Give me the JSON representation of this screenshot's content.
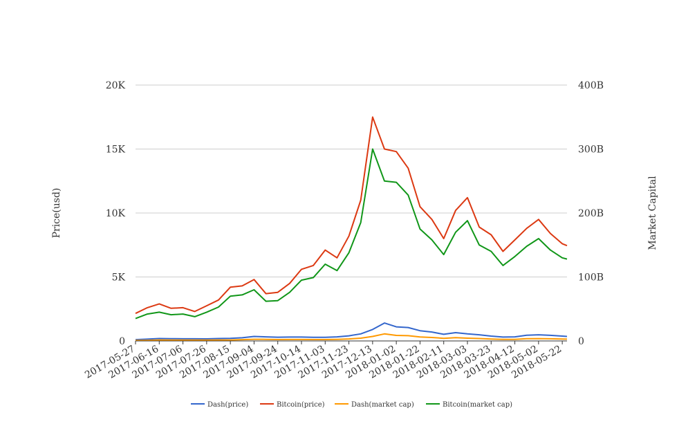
{
  "chart_data": {
    "type": "line",
    "title": "",
    "xlabel": "",
    "ylabel_left": "Price(usd)",
    "ylabel_right": "Market Capital",
    "x_ticks": [
      "2017-05-27",
      "2017-06-16",
      "2017-07-06",
      "2017-07-26",
      "2017-08-15",
      "2017-09-04",
      "2017-09-24",
      "2017-10-14",
      "2017-11-03",
      "2017-11-23",
      "2017-12-13",
      "2018-01-02",
      "2018-01-22",
      "2018-02-11",
      "2018-03-03",
      "2018-03-23",
      "2018-04-12",
      "2018-05-02",
      "2018-05-22"
    ],
    "y_left": {
      "ticks": [
        0,
        5000,
        10000,
        15000,
        20000
      ],
      "tick_labels": [
        "0",
        "5K",
        "10K",
        "15K",
        "20K"
      ],
      "range": [
        0,
        20000
      ]
    },
    "y_right": {
      "ticks": [
        0,
        100000000000,
        200000000000,
        300000000000,
        400000000000
      ],
      "tick_labels": [
        "0",
        "100B",
        "200B",
        "300B",
        "400B"
      ],
      "range": [
        0,
        400000000000
      ]
    },
    "grid": true,
    "legend_position": "bottom",
    "x": [
      "2017-05-27",
      "2017-06-06",
      "2017-06-16",
      "2017-06-26",
      "2017-07-06",
      "2017-07-16",
      "2017-07-26",
      "2017-08-05",
      "2017-08-15",
      "2017-08-25",
      "2017-09-04",
      "2017-09-14",
      "2017-09-24",
      "2017-10-04",
      "2017-10-14",
      "2017-10-24",
      "2017-11-03",
      "2017-11-13",
      "2017-11-23",
      "2017-12-03",
      "2017-12-13",
      "2017-12-23",
      "2018-01-02",
      "2018-01-12",
      "2018-01-22",
      "2018-02-01",
      "2018-02-11",
      "2018-02-21",
      "2018-03-03",
      "2018-03-13",
      "2018-03-23",
      "2018-04-02",
      "2018-04-12",
      "2018-04-22",
      "2018-05-02",
      "2018-05-12",
      "2018-05-22",
      "2018-05-26"
    ],
    "series": [
      {
        "name": "Dash(price)",
        "axis": "left",
        "color": "#3366cc",
        "values": [
          100,
          140,
          190,
          180,
          170,
          170,
          160,
          190,
          200,
          250,
          350,
          320,
          290,
          300,
          300,
          280,
          280,
          320,
          400,
          550,
          900,
          1400,
          1100,
          1050,
          800,
          700,
          520,
          650,
          550,
          480,
          380,
          300,
          320,
          450,
          480,
          440,
          380,
          350
        ]
      },
      {
        "name": "Bitcoin(price)",
        "axis": "left",
        "color": "#dc3912",
        "values": [
          2150,
          2600,
          2900,
          2550,
          2600,
          2300,
          2750,
          3200,
          4200,
          4300,
          4800,
          3700,
          3800,
          4500,
          5600,
          5900,
          7100,
          6500,
          8200,
          11000,
          17500,
          15000,
          14800,
          13500,
          10500,
          9500,
          8000,
          10200,
          11200,
          8900,
          8300,
          7000,
          7900,
          8800,
          9500,
          8400,
          7600,
          7450
        ]
      },
      {
        "name": "Dash(market cap)",
        "axis": "right",
        "color": "#ff9900",
        "values": [
          750000000,
          1000000000,
          1500000000,
          1350000000,
          1300000000,
          1300000000,
          1250000000,
          1500000000,
          1550000000,
          2000000000,
          2600000000,
          2450000000,
          2200000000,
          2300000000,
          2300000000,
          2150000000,
          2150000000,
          2450000000,
          3100000000,
          4300000000,
          7000000000,
          11000000000,
          8600000000,
          8200000000,
          6300000000,
          5400000000,
          4100000000,
          5100000000,
          4300000000,
          3800000000,
          3000000000,
          2400000000,
          2500000000,
          3500000000,
          3700000000,
          3400000000,
          3000000000,
          2800000000
        ]
      },
      {
        "name": "Bitcoin(market cap)",
        "axis": "right",
        "color": "#109618",
        "values": [
          35000000000,
          42000000000,
          45000000000,
          41000000000,
          42000000000,
          38000000000,
          45000000000,
          53000000000,
          70000000000,
          72000000000,
          80000000000,
          62000000000,
          63000000000,
          76000000000,
          95000000000,
          99000000000,
          120000000000,
          110000000000,
          138000000000,
          185000000000,
          300000000000,
          250000000000,
          248000000000,
          228000000000,
          175000000000,
          158000000000,
          135000000000,
          170000000000,
          188000000000,
          150000000000,
          140000000000,
          118000000000,
          132000000000,
          148000000000,
          160000000000,
          142000000000,
          130000000000,
          128000000000
        ]
      }
    ]
  }
}
